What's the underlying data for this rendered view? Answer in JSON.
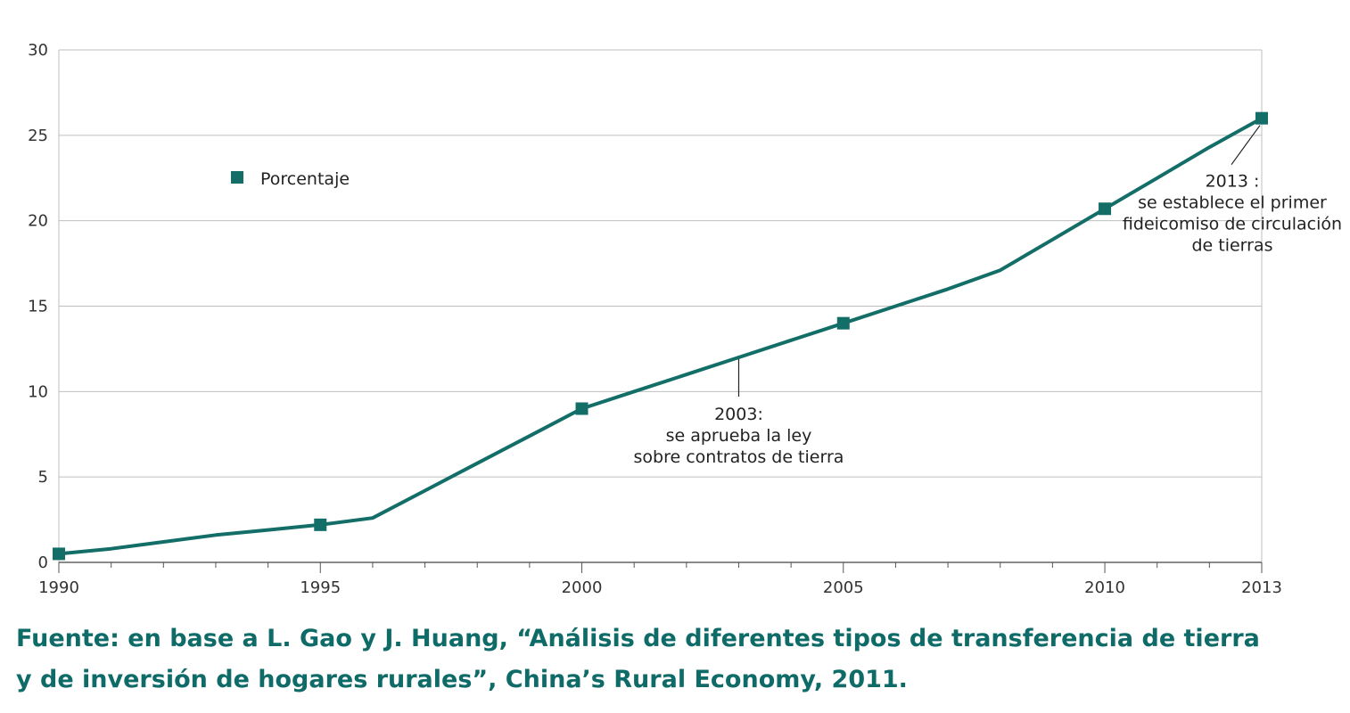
{
  "chart_data": {
    "type": "line",
    "x": [
      1990,
      1991,
      1992,
      1993,
      1994,
      1995,
      1996,
      1997,
      1998,
      1999,
      2000,
      2001,
      2002,
      2003,
      2004,
      2005,
      2006,
      2007,
      2008,
      2009,
      2010,
      2011,
      2012,
      2013
    ],
    "series": [
      {
        "name": "Porcentaje",
        "color": "#136e68",
        "values": [
          0.5,
          0.8,
          1.2,
          1.6,
          1.9,
          2.2,
          2.6,
          4.2,
          5.8,
          7.4,
          9.0,
          10.0,
          11.0,
          12.0,
          13.0,
          14.0,
          15.0,
          16.0,
          17.1,
          18.9,
          20.7,
          22.5,
          24.3,
          26.0
        ],
        "marker_x": [
          1990,
          1995,
          2000,
          2005,
          2010,
          2013
        ]
      }
    ],
    "xlim": [
      1990,
      2013
    ],
    "ylim": [
      0,
      30
    ],
    "x_ticks": [
      1990,
      1995,
      2000,
      2005,
      2010,
      2013
    ],
    "y_ticks": [
      0,
      5,
      10,
      15,
      20,
      25,
      30
    ],
    "grid": true,
    "legend": "upper-left inside plot",
    "annotations": [
      {
        "x": 2003,
        "y": 12.0,
        "lines": [
          "2003:",
          "se aprueba la ley",
          "sobre contratos de tierra"
        ]
      },
      {
        "x": 2013,
        "y": 26.0,
        "lines": [
          "2013 :",
          "se establece el primer",
          "fideicomiso de circulación",
          "de tierras"
        ]
      }
    ]
  },
  "source": {
    "line1": "Fuente: en base a L. Gao y J. Huang, “Análisis de diferentes tipos de transferencia de tierra",
    "line2": "y de inversión de hogares rurales”, China’s Rural Economy, 2011."
  },
  "colors": {
    "series": "#136e68",
    "source_text": "#0e6b67",
    "grid": "#bfbfbf"
  }
}
